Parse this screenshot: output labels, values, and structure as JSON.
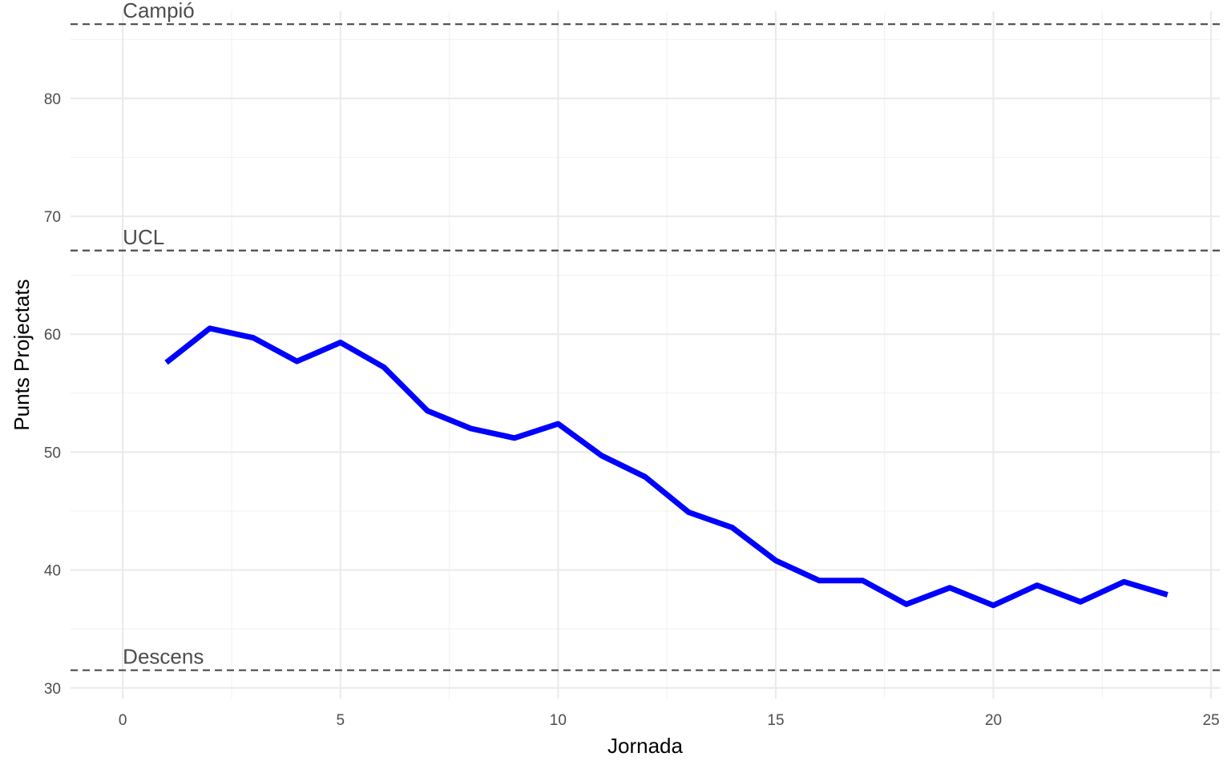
{
  "chart_data": {
    "type": "line",
    "title": "",
    "xlabel": "Jornada",
    "ylabel": "Punts Projectats",
    "xlim": [
      -1.2,
      25.2
    ],
    "ylim": [
      29.1,
      87.4
    ],
    "x_ticks": [
      0,
      5,
      10,
      15,
      20,
      25
    ],
    "x_tick_labels": [
      "0",
      "5",
      "10",
      "15",
      "20",
      "25"
    ],
    "y_ticks": [
      30,
      40,
      50,
      60,
      70,
      80
    ],
    "y_tick_labels": [
      "30",
      "40",
      "50",
      "60",
      "70",
      "80"
    ],
    "x_minor_ticks": [
      2.5,
      7.5,
      12.5,
      17.5,
      22.5
    ],
    "y_minor_ticks": [
      35,
      45,
      55,
      65,
      75,
      85
    ],
    "grid": true,
    "legend": "none",
    "series": [
      {
        "color": "#0000ff",
        "x": [
          1,
          2,
          3,
          4,
          5,
          6,
          7,
          8,
          9,
          10,
          11,
          12,
          13,
          14,
          15,
          16,
          17,
          18,
          19,
          20,
          21,
          22,
          23,
          24
        ],
        "y": [
          57.6,
          60.5,
          59.7,
          57.7,
          59.3,
          57.2,
          53.5,
          52.0,
          51.2,
          52.4,
          49.7,
          47.9,
          44.9,
          43.6,
          40.8,
          39.1,
          39.1,
          37.1,
          38.5,
          37.0,
          38.7,
          37.3,
          39.0,
          37.9
        ]
      }
    ],
    "reference_lines": [
      {
        "label": "Campió",
        "y": 86.3
      },
      {
        "label": "UCL",
        "y": 67.1
      },
      {
        "label": "Descens",
        "y": 31.5
      }
    ]
  }
}
